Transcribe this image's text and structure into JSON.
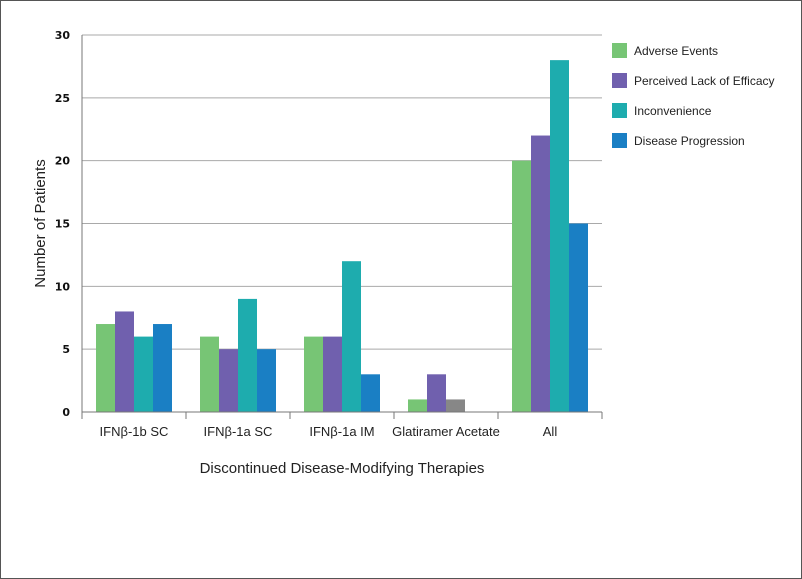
{
  "chart_data": {
    "type": "bar",
    "title": "",
    "xlabel": "Discontinued Disease-Modifying Therapies",
    "ylabel": "Number of Patients",
    "ylim": [
      0,
      30
    ],
    "yticks": [
      0,
      5,
      10,
      15,
      20,
      25,
      30
    ],
    "grid": true,
    "legend_position": "right",
    "categories": [
      "IFNβ-1b SC",
      "IFNβ-1a SC",
      "IFNβ-1a IM",
      "Glatiramer Acetate",
      "All"
    ],
    "series": [
      {
        "name": "Adverse Events",
        "color": "#77c575",
        "values": [
          7,
          6,
          6,
          1,
          20
        ]
      },
      {
        "name": "Perceived Lack of Efficacy",
        "color": "#7060ae",
        "values": [
          8,
          5,
          6,
          3,
          22
        ]
      },
      {
        "name": "Inconvenience",
        "color": "#1eacae",
        "values": [
          6,
          9,
          12,
          null,
          28
        ]
      },
      {
        "name": "Disease Progression",
        "color": "#1a7fc4",
        "values": [
          7,
          5,
          3,
          null,
          15
        ]
      }
    ],
    "extra_bars": [
      {
        "category_index": 3,
        "slot": 2,
        "value": 1,
        "color": "#878787"
      }
    ]
  }
}
